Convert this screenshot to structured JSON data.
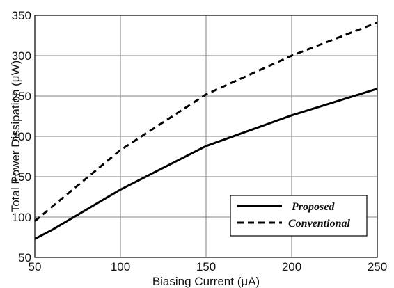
{
  "chart_data": {
    "type": "line",
    "xlabel": "Biasing Current (μA)",
    "ylabel": "Total Power Dissipation (μW)",
    "xlim": [
      50,
      250
    ],
    "ylim": [
      50,
      350
    ],
    "xticks": [
      "50",
      "100",
      "150",
      "200",
      "250"
    ],
    "yticks": [
      "50",
      "100",
      "150",
      "200",
      "250",
      "300",
      "350"
    ],
    "grid": true,
    "legend_position": "bottom-right",
    "series": [
      {
        "name": "Proposed",
        "style": "solid",
        "color": "#000000",
        "x": [
          50,
          60,
          100,
          150,
          200,
          250
        ],
        "y": [
          73,
          84,
          134,
          188,
          226,
          259
        ]
      },
      {
        "name": "Conventional",
        "style": "dashed",
        "color": "#000000",
        "x": [
          50,
          100,
          150,
          200,
          250
        ],
        "y": [
          95,
          183,
          252,
          300,
          341
        ]
      }
    ]
  }
}
